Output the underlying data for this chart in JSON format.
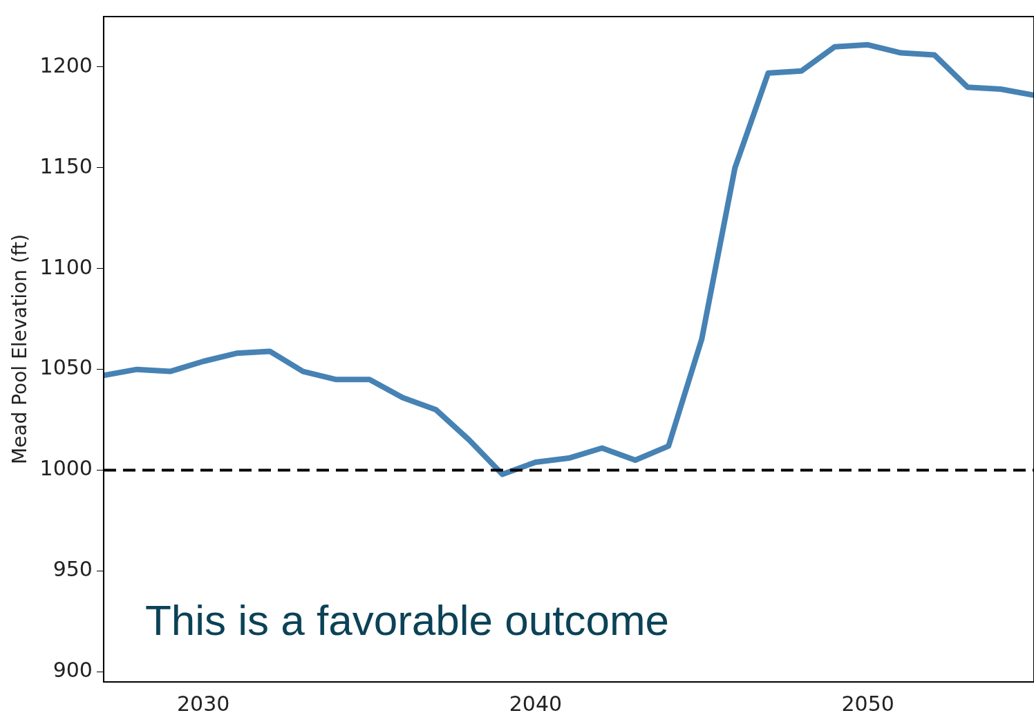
{
  "chart_data": {
    "type": "line",
    "ylabel": "Mead Pool Elevation (ft)",
    "x": [
      2027,
      2028,
      2029,
      2030,
      2031,
      2032,
      2033,
      2034,
      2035,
      2036,
      2037,
      2038,
      2039,
      2040,
      2041,
      2042,
      2043,
      2044,
      2045,
      2046,
      2047,
      2048,
      2049,
      2050,
      2051,
      2052,
      2053,
      2054,
      2055
    ],
    "series": [
      {
        "color": "#4682b4",
        "values": [
          1047,
          1050,
          1049,
          1054,
          1058,
          1059,
          1049,
          1045,
          1045,
          1036,
          1030,
          1015,
          998,
          1004,
          1006,
          1011,
          1005,
          1012,
          1065,
          1150,
          1197,
          1198,
          1210,
          1211,
          1207,
          1206,
          1190,
          1189,
          1186
        ]
      }
    ],
    "xlim": [
      2027,
      2055
    ],
    "xticks": [
      2030,
      2040,
      2050
    ],
    "ylim": [
      895,
      1225
    ],
    "yticks": [
      900,
      950,
      1000,
      1050,
      1100,
      1150,
      1200
    ],
    "ref_lines": [
      {
        "axis": "y",
        "value": 1000,
        "color": "#000000",
        "line_style": "dashed"
      }
    ],
    "annotations": [
      "This is a favorable outcome"
    ],
    "grid": false,
    "legend": false,
    "marker": "none",
    "line_style": "solid"
  }
}
